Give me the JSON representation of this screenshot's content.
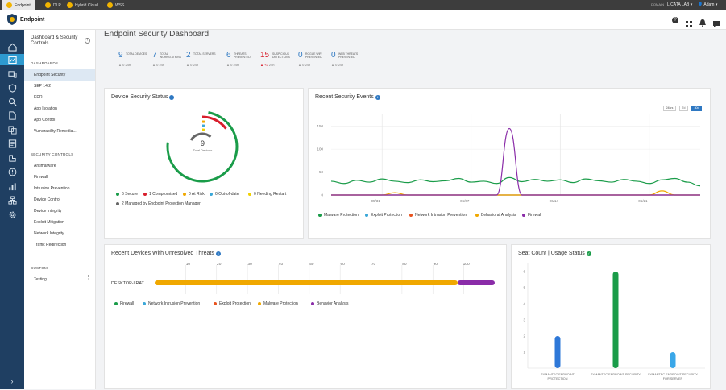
{
  "topbar": {
    "tabs": [
      {
        "label": "Endpoint",
        "active": true
      },
      {
        "label": "DLP"
      },
      {
        "label": "Hybrid Cloud"
      },
      {
        "label": "WSS"
      }
    ],
    "domain_label": "DOMAIN",
    "domain_value": "LICATA LAB",
    "user": "Adam"
  },
  "header": {
    "product": "Endpoint"
  },
  "sidebar": {
    "title": "Dashboard & Security Controls",
    "sections": [
      {
        "heading": "DASHBOARDS",
        "items": [
          "Endpoint Security",
          "SEP 14.2",
          "EDR",
          "App Isolation",
          "App Control",
          "Vulnerability Remedia..."
        ]
      },
      {
        "heading": "SECURITY CONTROLS",
        "items": [
          "Antimalware",
          "Firewall",
          "Intrusion Prevention",
          "Device Control",
          "Device Integrity",
          "Exploit Mitigation",
          "Network Integrity",
          "Traffic Redirection"
        ]
      },
      {
        "heading": "CUSTOM",
        "items": [
          "Testing"
        ]
      }
    ],
    "active_item": "Endpoint Security"
  },
  "page": {
    "title": "Endpoint Security Dashboard"
  },
  "stats": [
    {
      "value": "9",
      "label": "TOTAL DEVICES",
      "delta": "0",
      "period": "24h",
      "color": "#2e78c2"
    },
    {
      "value": "7",
      "label": "TOTAL WORKSTATIONS",
      "delta": "0",
      "period": "24h",
      "color": "#2e78c2"
    },
    {
      "value": "2",
      "label": "TOTAL SERVERS",
      "delta": "0",
      "period": "24h",
      "color": "#2e78c2"
    },
    {
      "value": "6",
      "label": "THREATS PREVENTED",
      "delta": "0",
      "period": "24h",
      "color": "#2e78c2"
    },
    {
      "value": "15",
      "label": "SUSPICIOUS DETECTIONS",
      "delta": "+2",
      "period": "24h",
      "color": "#d81e2c"
    },
    {
      "value": "0",
      "label": "ROGUE WIFI PREVENTED",
      "delta": "0",
      "period": "24h",
      "color": "#2e78c2"
    },
    {
      "value": "0",
      "label": "WEB THREATS PREVENTED",
      "delta": "0",
      "period": "24h",
      "color": "#2e78c2"
    }
  ],
  "device_status": {
    "title": "Device Security Status",
    "total": "9",
    "total_label": "Total Devices",
    "legend": [
      {
        "label": "6 Secure",
        "color": "#1a9c49"
      },
      {
        "label": "1 Compromised",
        "color": "#d81e2c"
      },
      {
        "label": "0 At Risk",
        "color": "#f0a800"
      },
      {
        "label": "0 Out-of-date",
        "color": "#3aa7d8"
      },
      {
        "label": "0 Needing Restart",
        "color": "#f0d000"
      },
      {
        "label": "2 Managed by Endpoint Protection Manager",
        "color": "#666666"
      }
    ]
  },
  "security_events": {
    "title": "Recent Security Events",
    "ranges": [
      "24hrs",
      "7d",
      "30d"
    ],
    "active_range": "30d"
  },
  "unresolved": {
    "title": "Recent Devices With Unresolved Threats"
  },
  "seat_count": {
    "title": "Seat Count | Usage Status"
  },
  "chart_data": [
    {
      "type": "line",
      "title": "Recent Security Events",
      "x_ticks": [
        "05/31",
        "06/07",
        "06/14",
        "06/21"
      ],
      "y_ticks": [
        0,
        50,
        100,
        150
      ],
      "ylim": [
        0,
        160
      ],
      "x": [
        0,
        1,
        2,
        3,
        4,
        5,
        6,
        7,
        8,
        9,
        10,
        11,
        12,
        13,
        14,
        15,
        16,
        17,
        18,
        19,
        20,
        21,
        22,
        23,
        24,
        25,
        26,
        27,
        28,
        29
      ],
      "series": [
        {
          "name": "Malware Protection",
          "color": "#1a9c49",
          "values": [
            30,
            25,
            32,
            28,
            35,
            30,
            27,
            33,
            29,
            31,
            36,
            28,
            30,
            25,
            38,
            29,
            34,
            30,
            33,
            27,
            35,
            31,
            28,
            34,
            30,
            25,
            33,
            36,
            28,
            20
          ]
        },
        {
          "name": "Exploit Protection",
          "color": "#3aa7d8",
          "values": [
            0,
            0,
            0,
            0,
            0,
            0,
            0,
            0,
            0,
            0,
            0,
            0,
            0,
            0,
            0,
            0,
            0,
            0,
            0,
            0,
            0,
            0,
            0,
            0,
            0,
            0,
            0,
            0,
            0,
            0
          ]
        },
        {
          "name": "Network Intrusion Prevention",
          "color": "#e8531e",
          "values": [
            0,
            0,
            0,
            0,
            0,
            0,
            0,
            0,
            0,
            0,
            0,
            0,
            0,
            0,
            0,
            0,
            0,
            0,
            0,
            0,
            0,
            0,
            0,
            0,
            0,
            0,
            0,
            0,
            0,
            0
          ]
        },
        {
          "name": "Behavioral Analysis",
          "color": "#f0a800",
          "values": [
            0,
            0,
            0,
            0,
            0,
            5,
            0,
            0,
            0,
            0,
            0,
            0,
            0,
            0,
            0,
            0,
            0,
            0,
            0,
            0,
            0,
            0,
            0,
            0,
            0,
            0,
            9,
            0,
            0,
            0
          ]
        },
        {
          "name": "Firewall",
          "color": "#8a2ca8",
          "values": [
            0,
            0,
            0,
            0,
            0,
            0,
            0,
            0,
            0,
            0,
            0,
            0,
            0,
            0,
            145,
            0,
            0,
            0,
            0,
            0,
            0,
            0,
            0,
            0,
            0,
            0,
            0,
            0,
            0,
            0
          ]
        }
      ]
    },
    {
      "type": "bar",
      "title": "Recent Devices With Unresolved Threats",
      "x_ticks": [
        10,
        20,
        30,
        40,
        50,
        60,
        70,
        80,
        90,
        100
      ],
      "xlim": [
        0,
        110
      ],
      "categories": [
        "DESKTOP-LRAT..."
      ],
      "series": [
        {
          "name": "Firewall",
          "color": "#1a9c49",
          "values": [
            0
          ]
        },
        {
          "name": "Network Intrusion Prevention",
          "color": "#3aa7d8",
          "values": [
            0
          ]
        },
        {
          "name": "Exploit Protection",
          "color": "#e8531e",
          "values": [
            0
          ]
        },
        {
          "name": "Malware Protection",
          "color": "#f0a800",
          "values": [
            98
          ]
        },
        {
          "name": "Behavior Analysis",
          "color": "#8a2ca8",
          "values": [
            12
          ]
        }
      ]
    },
    {
      "type": "bar",
      "title": "Seat Count | Usage Status",
      "y_ticks": [
        1,
        2,
        3,
        4,
        5,
        6
      ],
      "ylim": [
        0,
        6.3
      ],
      "categories": [
        "SYMANTEC ENDPOINT PROTECTION",
        "SYMANTEC ENDPOINT SECURITY",
        "SYMANTEC ENDPOINT SECURITY FOR SERVER"
      ],
      "values": [
        2,
        6,
        1
      ],
      "colors": [
        "#2e78d8",
        "#1a9c49",
        "#3aa7e8"
      ]
    }
  ]
}
